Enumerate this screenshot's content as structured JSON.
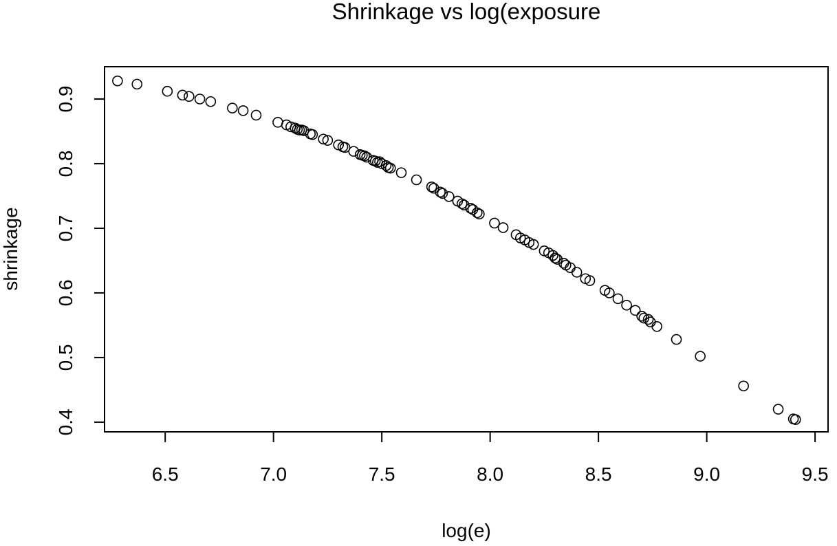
{
  "chart_data": {
    "type": "scatter",
    "title": "Shrinkage vs log(exposure",
    "xlabel": "log(e)",
    "ylabel": "shrinkage",
    "xlim": [
      6.22,
      9.56
    ],
    "ylim": [
      0.385,
      0.95
    ],
    "grid": false,
    "x_ticks": [
      6.5,
      7.0,
      7.5,
      8.0,
      8.5,
      9.0,
      9.5
    ],
    "x_tick_labels": [
      "6.5",
      "7.0",
      "7.5",
      "8.0",
      "8.5",
      "9.0",
      "9.5"
    ],
    "y_ticks": [
      0.4,
      0.5,
      0.6,
      0.7,
      0.8,
      0.9
    ],
    "y_tick_labels": [
      "0.4",
      "0.5",
      "0.6",
      "0.7",
      "0.8",
      "0.9"
    ],
    "marker": "open-circle",
    "x": [
      6.28,
      6.37,
      6.51,
      6.58,
      6.61,
      6.66,
      6.71,
      6.81,
      6.86,
      6.92,
      7.02,
      7.06,
      7.08,
      7.1,
      7.11,
      7.12,
      7.13,
      7.14,
      7.17,
      7.18,
      7.23,
      7.25,
      7.3,
      7.32,
      7.33,
      7.37,
      7.4,
      7.41,
      7.42,
      7.43,
      7.46,
      7.47,
      7.48,
      7.49,
      7.5,
      7.52,
      7.53,
      7.54,
      7.59,
      7.66,
      7.73,
      7.74,
      7.77,
      7.78,
      7.81,
      7.85,
      7.87,
      7.88,
      7.91,
      7.92,
      7.94,
      7.95,
      8.02,
      8.06,
      8.12,
      8.14,
      8.16,
      8.18,
      8.2,
      8.25,
      8.27,
      8.29,
      8.3,
      8.31,
      8.34,
      8.35,
      8.37,
      8.4,
      8.44,
      8.46,
      8.53,
      8.55,
      8.59,
      8.63,
      8.67,
      8.7,
      8.71,
      8.73,
      8.74,
      8.77,
      8.86,
      8.97,
      9.17,
      9.33,
      9.4,
      9.41
    ],
    "y": [
      0.928,
      0.923,
      0.912,
      0.906,
      0.904,
      0.9,
      0.896,
      0.886,
      0.882,
      0.875,
      0.864,
      0.86,
      0.857,
      0.855,
      0.853,
      0.852,
      0.852,
      0.851,
      0.846,
      0.845,
      0.838,
      0.836,
      0.829,
      0.826,
      0.825,
      0.819,
      0.814,
      0.813,
      0.812,
      0.81,
      0.805,
      0.804,
      0.802,
      0.803,
      0.8,
      0.797,
      0.794,
      0.793,
      0.786,
      0.775,
      0.764,
      0.762,
      0.756,
      0.754,
      0.749,
      0.742,
      0.738,
      0.736,
      0.731,
      0.729,
      0.724,
      0.722,
      0.708,
      0.701,
      0.69,
      0.685,
      0.682,
      0.678,
      0.675,
      0.665,
      0.662,
      0.658,
      0.654,
      0.652,
      0.646,
      0.643,
      0.639,
      0.632,
      0.622,
      0.619,
      0.604,
      0.6,
      0.591,
      0.581,
      0.573,
      0.564,
      0.561,
      0.559,
      0.555,
      0.548,
      0.528,
      0.502,
      0.456,
      0.42,
      0.405,
      0.404
    ]
  }
}
